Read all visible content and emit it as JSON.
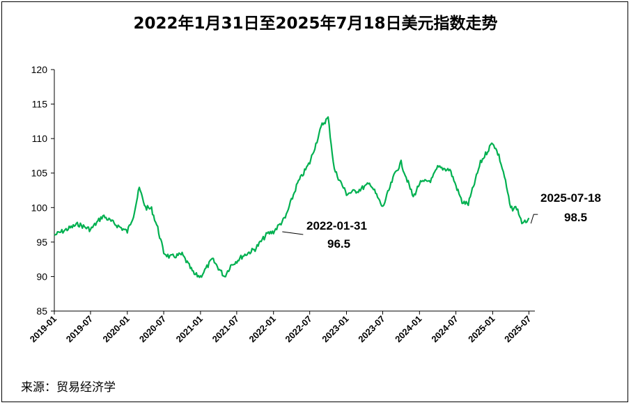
{
  "chart_data": {
    "type": "line",
    "title": "2022年1月31日至2025年7月18日美元指数走势",
    "source": "来源：贸易经济学",
    "ylim": [
      85,
      120
    ],
    "yticks": [
      85,
      90,
      95,
      100,
      105,
      110,
      115,
      120
    ],
    "xticks": [
      "2019-01",
      "2019-07",
      "2020-01",
      "2020-07",
      "2021-01",
      "2021-07",
      "2022-01",
      "2022-07",
      "2023-01",
      "2023-07",
      "2024-01",
      "2024-07",
      "2025-01",
      "2025-07"
    ],
    "xlim": [
      "2019-01-01",
      "2025-07-31"
    ],
    "line_color": "#00b050",
    "grid": false,
    "series": [
      {
        "x": [
          "2019-01",
          "2019-03",
          "2019-05",
          "2019-07",
          "2019-09",
          "2019-11",
          "2020-01",
          "2020-02",
          "2020-03",
          "2020-04",
          "2020-05",
          "2020-06",
          "2020-07",
          "2020-08",
          "2020-10",
          "2020-12",
          "2021-01",
          "2021-03",
          "2021-05",
          "2021-06",
          "2021-08",
          "2021-10",
          "2021-12",
          "2022-01",
          "2022-03",
          "2022-05",
          "2022-07",
          "2022-09",
          "2022-10",
          "2022-11",
          "2023-01",
          "2023-03",
          "2023-05",
          "2023-07",
          "2023-09",
          "2023-10",
          "2023-12",
          "2024-01",
          "2024-03",
          "2024-04",
          "2024-06",
          "2024-08",
          "2024-09",
          "2024-11",
          "2025-01",
          "2025-02",
          "2025-03",
          "2025-04",
          "2025-05",
          "2025-06",
          "2025-07"
        ],
        "y": [
          96.0,
          96.8,
          97.6,
          96.8,
          98.8,
          97.6,
          96.5,
          98.9,
          102.8,
          100.0,
          99.8,
          97.0,
          93.5,
          92.8,
          93.2,
          90.3,
          90.0,
          92.5,
          90.0,
          91.6,
          93.0,
          94.0,
          96.2,
          96.5,
          98.5,
          103.5,
          106.5,
          112.0,
          113.0,
          105.5,
          102.0,
          102.5,
          103.5,
          100.0,
          105.0,
          106.5,
          101.5,
          103.5,
          104.0,
          105.8,
          105.5,
          100.8,
          100.5,
          106.5,
          109.5,
          107.5,
          104.5,
          99.8,
          100.0,
          97.5,
          98.5
        ]
      }
    ],
    "annotations": [
      {
        "label_date": "2022-01-31",
        "label_value": "96.5",
        "x": "2022-01-31",
        "y": 96.5
      },
      {
        "label_date": "2025-07-18",
        "label_value": "98.5",
        "x": "2025-07-18",
        "y": 98.5
      }
    ]
  }
}
